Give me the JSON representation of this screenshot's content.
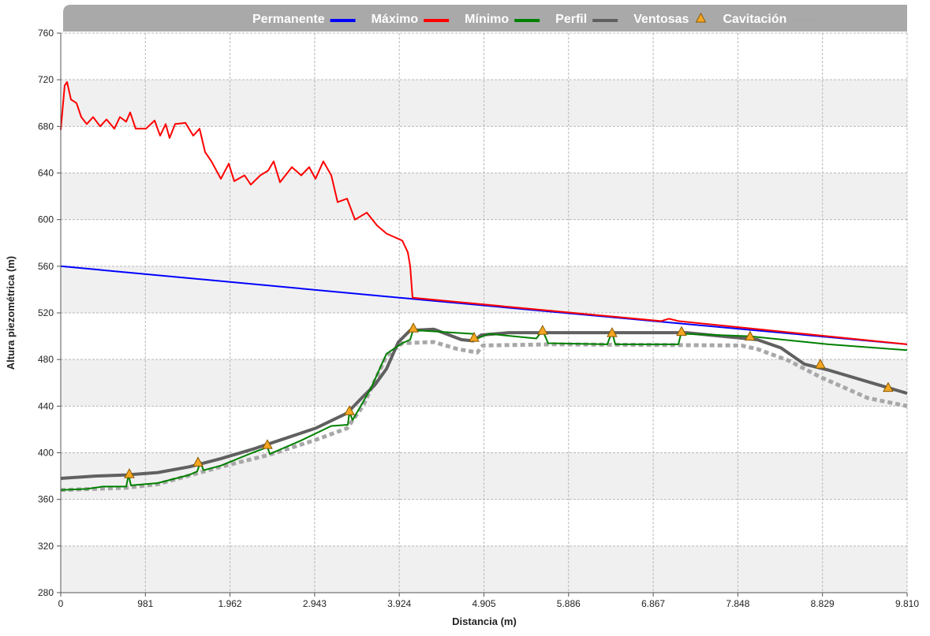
{
  "chart_data": {
    "type": "line",
    "xlabel": "Distancia (m)",
    "ylabel": "Altura piezométrica (m)",
    "xlim": [
      0,
      9810
    ],
    "ylim": [
      280,
      760
    ],
    "xticks": [
      0,
      981,
      {
        "value": 1962,
        "label": "1.962"
      },
      {
        "value": 2943,
        "label": "2.943"
      },
      {
        "value": 3924,
        "label": "3.924"
      },
      {
        "value": 4905,
        "label": "4.905"
      },
      {
        "value": 5886,
        "label": "5.886"
      },
      {
        "value": 6867,
        "label": "6.867"
      },
      {
        "value": 7848,
        "label": "7.848"
      },
      {
        "value": 8829,
        "label": "8.829"
      },
      {
        "value": 9810,
        "label": "9.810"
      }
    ],
    "yticks": [
      280,
      320,
      360,
      400,
      440,
      480,
      520,
      560,
      600,
      640,
      680,
      720,
      760
    ],
    "grid": true,
    "legend": "top",
    "series": [
      {
        "name": "Permanente",
        "color": "#0000ff",
        "x": [
          0,
          4078,
          9810
        ],
        "values": [
          560,
          532,
          493
        ]
      },
      {
        "name": "Máximo",
        "color": "#ff0000",
        "x": [
          0,
          46,
          73,
          119,
          183,
          238,
          302,
          375,
          457,
          530,
          622,
          686,
          759,
          805,
          869,
          987,
          1088,
          1152,
          1216,
          1262,
          1326,
          1445,
          1536,
          1609,
          1673,
          1746,
          1856,
          1947,
          2011,
          2130,
          2203,
          2313,
          2404,
          2468,
          2542,
          2679,
          2788,
          2880,
          2953,
          3044,
          3136,
          3209,
          3319,
          3410,
          3547,
          3666,
          3776,
          3867,
          3959,
          4023,
          4050,
          4078,
          6957,
          7049,
          7159,
          9810
        ],
        "values": [
          677,
          715,
          718,
          703,
          700,
          688,
          682,
          688,
          680,
          686,
          678,
          688,
          684,
          692,
          678,
          678,
          685,
          672,
          682,
          670,
          682,
          683,
          672,
          678,
          658,
          650,
          635,
          648,
          633,
          638,
          630,
          638,
          642,
          650,
          632,
          645,
          638,
          645,
          635,
          650,
          638,
          615,
          618,
          600,
          606,
          595,
          588,
          585,
          582,
          572,
          560,
          533,
          513,
          515,
          513,
          493
        ]
      },
      {
        "name": "Mínimo",
        "color": "#008000",
        "x": [
          0,
          302,
          485,
          759,
          786,
          814,
          1124,
          1490,
          1582,
          1618,
          1655,
          1856,
          2222,
          2368,
          2386,
          2423,
          2770,
          3136,
          3328,
          3346,
          3383,
          3593,
          3776,
          3959,
          4050,
          4087,
          4142,
          4781,
          4827,
          4964,
          5512,
          5585,
          5649,
          6335,
          6390,
          6427,
          7159,
          7195,
          7232,
          7981,
          8896,
          9810
        ],
        "values": [
          368,
          369,
          371,
          371,
          381,
          372,
          374,
          381,
          384,
          392,
          385,
          389,
          400,
          404,
          407,
          399,
          410,
          423,
          424,
          435,
          428,
          455,
          485,
          494,
          497,
          506,
          505,
          502,
          498,
          502,
          498,
          505,
          494,
          493,
          504,
          493,
          493,
          504,
          502,
          500,
          493,
          488
        ]
      },
      {
        "name": "Perfil",
        "color": "#606060",
        "x": [
          0,
          393,
          759,
          1124,
          1490,
          1856,
          2222,
          2587,
          2953,
          3319,
          3502,
          3639,
          3776,
          3913,
          4050,
          4324,
          4644,
          4781,
          4873,
          5193,
          5695,
          7250,
          7524,
          8073,
          8347,
          8621,
          8896,
          9353,
          9581,
          9810
        ],
        "values": [
          378,
          380,
          381,
          383,
          388,
          395,
          403,
          412,
          421,
          434,
          448,
          458,
          472,
          495,
          505,
          506,
          497,
          496,
          501,
          503,
          503,
          503,
          501,
          497,
          490,
          476,
          471,
          461,
          456,
          451
        ]
      },
      {
        "name": "Ventosas",
        "color": "#f5a623",
        "marker": "triangle",
        "x": [
          795,
          1591,
          2395,
          3346,
          4087,
          4791,
          5585,
          6390,
          7195,
          7990,
          8804,
          9590
        ],
        "values": [
          382,
          392,
          407,
          436,
          507,
          499,
          505,
          503,
          504,
          500,
          476,
          456
        ]
      },
      {
        "name": "Cavitación",
        "color": "#a8a8a8",
        "dashed": true,
        "x": [
          0,
          759,
          1124,
          1856,
          2404,
          2953,
          3319,
          3502,
          3776,
          3959,
          4324,
          4599,
          4827,
          4891,
          5695,
          7890,
          8073,
          8438,
          8804,
          9353,
          9810
        ],
        "values": [
          368,
          370,
          373,
          388,
          398,
          411,
          421,
          440,
          483,
          494,
          495,
          489,
          486,
          492,
          493,
          492,
          489,
          479,
          465,
          447,
          440
        ]
      }
    ]
  }
}
